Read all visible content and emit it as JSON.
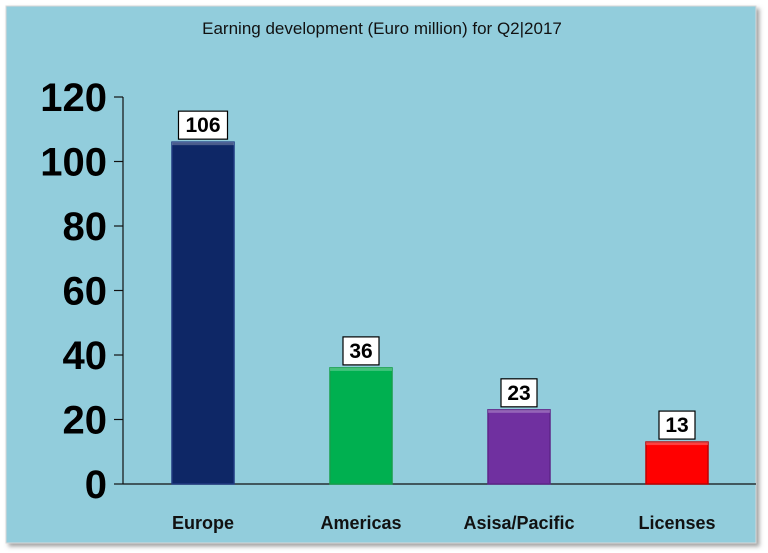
{
  "chart_data": {
    "type": "bar",
    "title": "Earning development (Euro million) for  Q2|2017",
    "categories": [
      "Europe",
      "Americas",
      "Asisa/Pacific",
      "Licenses"
    ],
    "values": [
      106,
      36,
      23,
      13
    ],
    "data_labels": [
      "106",
      "36",
      "23",
      "13"
    ],
    "yticks": [
      0,
      20,
      40,
      60,
      80,
      100,
      120
    ],
    "ylim": [
      0,
      120
    ],
    "xlabel": "",
    "ylabel": "",
    "grid": false,
    "legend": "none",
    "colors": {
      "background": "#92CDDC",
      "bars": [
        "#0E2766",
        "#00B050",
        "#7030A0",
        "#FF0000"
      ],
      "bar_edges": [
        "#203A80",
        "#14A04A",
        "#5E2488",
        "#C00000"
      ]
    }
  }
}
